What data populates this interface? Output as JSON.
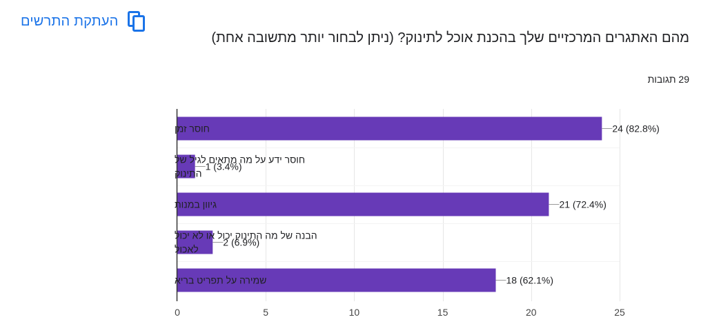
{
  "header": {
    "copy_label": "העתקת התרשים",
    "question": "מהם האתגרים המרכזיים שלך בהכנת אוכל לתינוק? (ניתן לבחור יותר מתשובה אחת)",
    "responses": "29 תגובות"
  },
  "colors": {
    "bar": "#673ab7",
    "accent": "#1a73e8",
    "grid": "#e6e6e6",
    "axis": "#333333",
    "text": "#202124",
    "leader": "#999999"
  },
  "chart_data": {
    "type": "bar",
    "orientation": "horizontal",
    "categories": [
      [
        "חוסר זמן"
      ],
      [
        "חוסר ידע על מה מתאים לגיל של",
        "התינוק"
      ],
      [
        "גיוון במנות"
      ],
      [
        "הבנה של מה התינוק יכול או לא יכול",
        "לאכול"
      ],
      [
        "שמירה על תפריט בריא"
      ]
    ],
    "values": [
      24,
      1,
      21,
      2,
      18
    ],
    "data_labels": [
      "24 (82.8%)",
      "1 (3.4%)",
      "21 (72.4%)",
      "2 (6.9%)",
      "18 (62.1%)"
    ],
    "xlim": [
      0,
      25
    ],
    "xticks": [
      0,
      5,
      10,
      15,
      20,
      25
    ],
    "xtick_labels": [
      "0",
      "5",
      "10",
      "15",
      "20",
      "25"
    ],
    "grid": true
  }
}
